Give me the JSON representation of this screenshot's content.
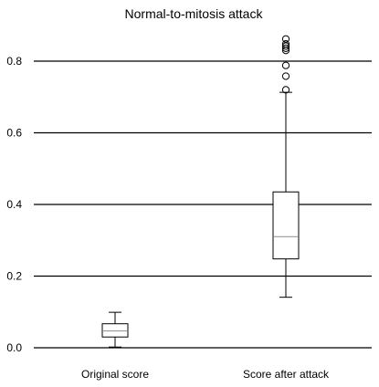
{
  "chart_data": {
    "type": "boxplot",
    "title": "Normal-to-mitosis attack",
    "xlabel": "",
    "ylabel": "",
    "categories": [
      "Original score",
      "Score after attack"
    ],
    "ylim": [
      0.0,
      0.88
    ],
    "yticks": [
      0.0,
      0.2,
      0.4,
      0.6,
      0.8
    ],
    "ytick_labels": [
      "0.0",
      "0.2",
      "0.4",
      "0.6",
      "0.8"
    ],
    "grid": true,
    "boxes": [
      {
        "name": "Original score",
        "whisker_low": 0.002,
        "q1": 0.03,
        "median": 0.047,
        "q3": 0.067,
        "whisker_high": 0.099,
        "outliers": []
      },
      {
        "name": "Score after attack",
        "whisker_low": 0.141,
        "q1": 0.248,
        "median": 0.31,
        "q3": 0.435,
        "whisker_high": 0.713,
        "outliers": [
          0.72,
          0.758,
          0.788,
          0.83,
          0.836,
          0.842,
          0.848,
          0.862
        ]
      }
    ]
  },
  "colors": {
    "box_fill": "#ffffff",
    "box_stroke": "#000000",
    "median": "#999999",
    "grid": "#000000"
  }
}
